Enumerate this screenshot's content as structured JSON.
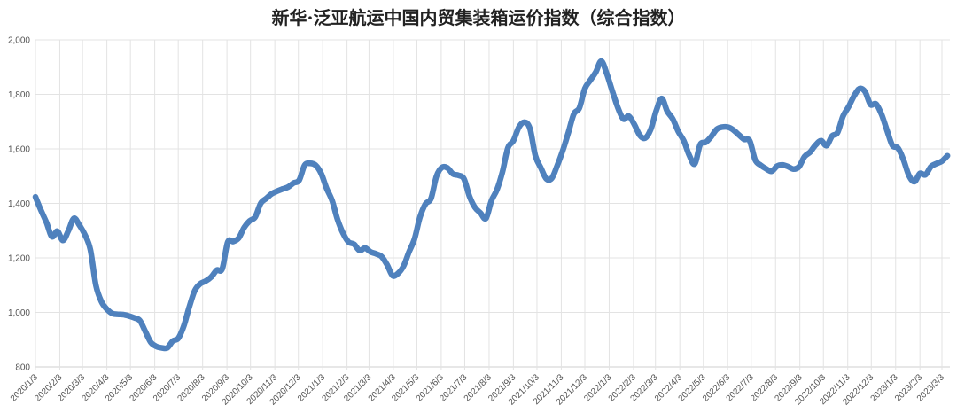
{
  "chart_data": {
    "type": "line",
    "title": "新华·泛亚航运中国内贸集装箱运价指数（综合指数）",
    "xlabel": "",
    "ylabel": "",
    "ylim": [
      800,
      2000
    ],
    "yticks": [
      800,
      1000,
      1200,
      1400,
      1600,
      1800,
      2000
    ],
    "ytick_labels": [
      "800",
      "1,000",
      "1,200",
      "1,400",
      "1,600",
      "1,800",
      "2,000"
    ],
    "xtick_labels": [
      "2020/1/3",
      "2020/2/3",
      "2020/3/3",
      "2020/4/3",
      "2020/5/3",
      "2020/6/3",
      "2020/7/3",
      "2020/8/3",
      "2020/9/3",
      "2020/10/3",
      "2020/11/3",
      "2020/12/3",
      "2021/1/3",
      "2021/2/3",
      "2021/3/3",
      "2021/4/3",
      "2021/5/3",
      "2021/6/3",
      "2021/7/3",
      "2021/8/3",
      "2021/9/3",
      "2021/10/3",
      "2021/11/3",
      "2021/12/3",
      "2022/1/3",
      "2022/2/3",
      "2022/3/3",
      "2022/4/3",
      "2022/5/3",
      "2022/6/3",
      "2022/7/3",
      "2022/8/3",
      "2022/9/3",
      "2022/10/3",
      "2022/11/3",
      "2022/12/3",
      "2023/1/3",
      "2023/2/3",
      "2023/3/3"
    ],
    "grid": true,
    "legend": "none",
    "series_color": "#4F81BD",
    "x": [
      "2020-01-03",
      "2020-01-10",
      "2020-01-17",
      "2020-01-24",
      "2020-01-31",
      "2020-02-07",
      "2020-02-14",
      "2020-02-21",
      "2020-02-28",
      "2020-03-06",
      "2020-03-13",
      "2020-03-20",
      "2020-03-27",
      "2020-04-03",
      "2020-04-10",
      "2020-04-17",
      "2020-04-24",
      "2020-05-01",
      "2020-05-08",
      "2020-05-15",
      "2020-05-22",
      "2020-05-29",
      "2020-06-05",
      "2020-06-12",
      "2020-06-19",
      "2020-06-26",
      "2020-07-03",
      "2020-07-10",
      "2020-07-17",
      "2020-07-24",
      "2020-07-31",
      "2020-08-07",
      "2020-08-14",
      "2020-08-21",
      "2020-08-28",
      "2020-09-04",
      "2020-09-11",
      "2020-09-18",
      "2020-09-25",
      "2020-10-02",
      "2020-10-09",
      "2020-10-16",
      "2020-10-23",
      "2020-10-30",
      "2020-11-06",
      "2020-11-13",
      "2020-11-20",
      "2020-11-27",
      "2020-12-04",
      "2020-12-11",
      "2020-12-18",
      "2020-12-25",
      "2021-01-01",
      "2021-01-08",
      "2021-01-15",
      "2021-01-22",
      "2021-01-29",
      "2021-02-05",
      "2021-02-12",
      "2021-02-19",
      "2021-02-26",
      "2021-03-05",
      "2021-03-12",
      "2021-03-19",
      "2021-03-26",
      "2021-04-02",
      "2021-04-09",
      "2021-04-16",
      "2021-04-23",
      "2021-04-30",
      "2021-05-07",
      "2021-05-14",
      "2021-05-21",
      "2021-05-28",
      "2021-06-04",
      "2021-06-11",
      "2021-06-18",
      "2021-06-25",
      "2021-07-02",
      "2021-07-09",
      "2021-07-16",
      "2021-07-23",
      "2021-07-30",
      "2021-08-06",
      "2021-08-13",
      "2021-08-20",
      "2021-08-27",
      "2021-09-03",
      "2021-09-10",
      "2021-09-17",
      "2021-09-24",
      "2021-10-01",
      "2021-10-08",
      "2021-10-15",
      "2021-10-22",
      "2021-10-29",
      "2021-11-05",
      "2021-11-12",
      "2021-11-19",
      "2021-11-26",
      "2021-12-03",
      "2021-12-10",
      "2021-12-17",
      "2021-12-24",
      "2021-12-31",
      "2022-01-07",
      "2022-01-14",
      "2022-01-21",
      "2022-01-28",
      "2022-02-04",
      "2022-02-11",
      "2022-02-18",
      "2022-02-25",
      "2022-03-04",
      "2022-03-11",
      "2022-03-18",
      "2022-03-25",
      "2022-04-01",
      "2022-04-08",
      "2022-04-15",
      "2022-04-22",
      "2022-04-29",
      "2022-05-06",
      "2022-05-13",
      "2022-05-20",
      "2022-05-27",
      "2022-06-03",
      "2022-06-10",
      "2022-06-17",
      "2022-06-24",
      "2022-07-01",
      "2022-07-08",
      "2022-07-15",
      "2022-07-22",
      "2022-07-29",
      "2022-08-05",
      "2022-08-12",
      "2022-08-19",
      "2022-08-26",
      "2022-09-02",
      "2022-09-09",
      "2022-09-16",
      "2022-09-23",
      "2022-09-30",
      "2022-10-07",
      "2022-10-14",
      "2022-10-21",
      "2022-10-28",
      "2022-11-04",
      "2022-11-11",
      "2022-11-18",
      "2022-11-25",
      "2022-12-02",
      "2022-12-09",
      "2022-12-16",
      "2022-12-23",
      "2022-12-30",
      "2023-01-06",
      "2023-01-13",
      "2023-01-20",
      "2023-01-27",
      "2023-02-03",
      "2023-02-10",
      "2023-02-17",
      "2023-02-24",
      "2023-03-03",
      "2023-03-10"
    ],
    "values": [
      1424,
      1375,
      1330,
      1278,
      1298,
      1264,
      1300,
      1345,
      1320,
      1285,
      1230,
      1100,
      1040,
      1012,
      996,
      993,
      992,
      987,
      980,
      970,
      930,
      890,
      875,
      870,
      870,
      895,
      905,
      950,
      1020,
      1080,
      1105,
      1115,
      1130,
      1155,
      1160,
      1258,
      1260,
      1273,
      1312,
      1336,
      1350,
      1400,
      1418,
      1435,
      1445,
      1453,
      1460,
      1475,
      1485,
      1540,
      1547,
      1540,
      1510,
      1455,
      1410,
      1340,
      1290,
      1258,
      1250,
      1227,
      1236,
      1222,
      1215,
      1205,
      1175,
      1135,
      1143,
      1170,
      1222,
      1270,
      1350,
      1398,
      1418,
      1500,
      1532,
      1530,
      1508,
      1503,
      1490,
      1426,
      1385,
      1365,
      1345,
      1410,
      1450,
      1515,
      1604,
      1630,
      1680,
      1698,
      1675,
      1575,
      1530,
      1490,
      1493,
      1540,
      1595,
      1660,
      1728,
      1750,
      1821,
      1852,
      1882,
      1922,
      1875,
      1812,
      1752,
      1710,
      1720,
      1690,
      1650,
      1640,
      1672,
      1740,
      1785,
      1738,
      1710,
      1664,
      1630,
      1577,
      1545,
      1616,
      1624,
      1645,
      1672,
      1680,
      1680,
      1670,
      1652,
      1635,
      1630,
      1560,
      1540,
      1527,
      1518,
      1537,
      1541,
      1535,
      1526,
      1535,
      1572,
      1588,
      1614,
      1630,
      1612,
      1647,
      1660,
      1720,
      1754,
      1794,
      1821,
      1810,
      1763,
      1765,
      1727,
      1668,
      1612,
      1603,
      1560,
      1502,
      1480,
      1510,
      1505,
      1535,
      1546,
      1555,
      1575
    ]
  }
}
